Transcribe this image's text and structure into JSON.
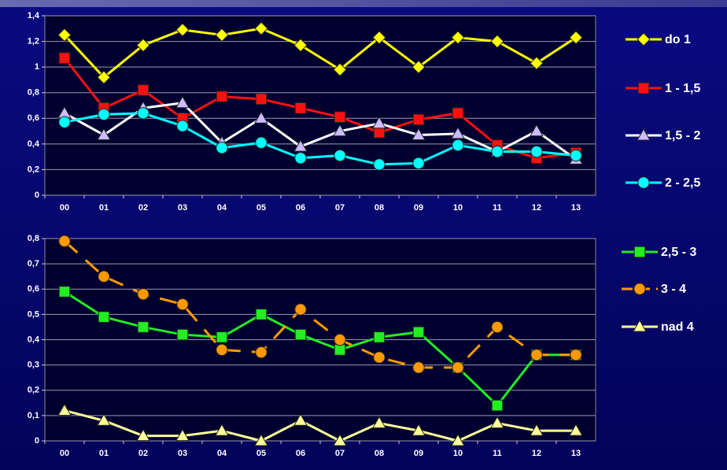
{
  "chart_data": [
    {
      "type": "line",
      "categories": [
        "00",
        "01",
        "02",
        "03",
        "04",
        "05",
        "06",
        "07",
        "08",
        "09",
        "10",
        "11",
        "12",
        "13"
      ],
      "ylim": [
        0,
        1.4
      ],
      "yticks": [
        0,
        {
          "value": 0.2,
          "label": "0,2"
        },
        {
          "value": 0.4,
          "label": "0,4"
        },
        {
          "value": 0.6,
          "label": "0,6"
        },
        {
          "value": 0.8,
          "label": "0,8"
        },
        1,
        {
          "value": 1.2,
          "label": "1,2"
        },
        {
          "value": 1.4,
          "label": "1,4"
        }
      ],
      "grid": true,
      "legend": "right",
      "series": [
        {
          "name": "do 1",
          "color": "#ffff00",
          "marker": "diamond",
          "values": [
            1.25,
            0.92,
            1.17,
            1.29,
            1.25,
            1.3,
            1.17,
            0.98,
            1.23,
            1.0,
            1.23,
            1.2,
            1.03,
            1.23
          ]
        },
        {
          "name": "1 - 1,5",
          "color": "#ff1010",
          "marker": "square",
          "values": [
            1.07,
            0.68,
            0.82,
            0.6,
            0.77,
            0.75,
            0.68,
            0.61,
            0.49,
            0.59,
            0.64,
            0.39,
            0.29,
            0.33
          ]
        },
        {
          "name": "1,5 - 2",
          "color": "#ffffff",
          "marker_color": "#ccbbff",
          "marker": "triangle",
          "values": [
            0.64,
            0.47,
            0.68,
            0.72,
            0.41,
            0.6,
            0.38,
            0.5,
            0.56,
            0.47,
            0.48,
            0.34,
            0.5,
            0.28
          ]
        },
        {
          "name": "2 - 2,5",
          "color": "#00ffff",
          "marker": "circle",
          "values": [
            0.57,
            0.63,
            0.64,
            0.54,
            0.37,
            0.41,
            0.29,
            0.31,
            0.24,
            0.25,
            0.39,
            0.34,
            0.34,
            0.31
          ]
        }
      ]
    },
    {
      "type": "line",
      "categories": [
        "00",
        "01",
        "02",
        "03",
        "04",
        "05",
        "06",
        "07",
        "08",
        "09",
        "10",
        "11",
        "12",
        "13"
      ],
      "ylim": [
        0,
        0.8
      ],
      "yticks": [
        0,
        {
          "value": 0.1,
          "label": "0,1"
        },
        {
          "value": 0.2,
          "label": "0,2"
        },
        {
          "value": 0.3,
          "label": "0,3"
        },
        {
          "value": 0.4,
          "label": "0,4"
        },
        {
          "value": 0.5,
          "label": "0,5"
        },
        {
          "value": 0.6,
          "label": "0,6"
        },
        {
          "value": 0.7,
          "label": "0,7"
        },
        {
          "value": 0.8,
          "label": "0,8"
        }
      ],
      "grid": true,
      "legend": "right",
      "series": [
        {
          "name": "2,5 - 3",
          "color": "#22ee22",
          "marker": "square",
          "values": [
            0.59,
            0.49,
            0.45,
            0.42,
            0.41,
            0.5,
            0.42,
            0.36,
            0.41,
            0.43,
            0.29,
            0.14,
            0.34,
            0.34
          ]
        },
        {
          "name": "3 - 4",
          "color": "#ff9900",
          "marker": "circle",
          "dash": true,
          "values": [
            0.79,
            0.65,
            0.58,
            0.54,
            0.36,
            0.35,
            0.52,
            0.4,
            0.33,
            0.29,
            0.29,
            0.45,
            0.34,
            0.34
          ]
        },
        {
          "name": "nad 4",
          "color": "#ffff99",
          "marker": "triangle",
          "values": [
            0.12,
            0.08,
            0.02,
            0.02,
            0.04,
            0.0,
            0.08,
            0.0,
            0.07,
            0.04,
            0.0,
            0.07,
            0.04,
            0.04
          ]
        }
      ]
    }
  ]
}
